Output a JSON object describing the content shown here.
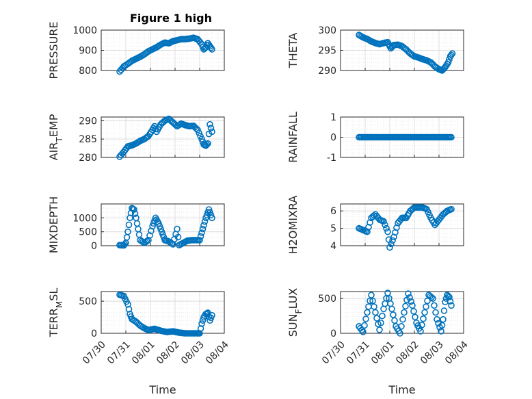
{
  "figure": {
    "title": "Figure 1 high"
  },
  "colors": {
    "marker": "#0072BD",
    "axis": "#262626",
    "grid_major": "#dcdcdc",
    "grid_minor": "#ececec"
  },
  "chart_data": [
    {
      "type": "scatter",
      "ylabel": "PRESSURE",
      "ylim": [
        800,
        1000
      ],
      "yticks": [
        800,
        900,
        1000
      ],
      "xlim": [
        "07/30",
        "08/04"
      ],
      "xticks": [],
      "xlabel": "",
      "points": [
        [
          "07/30 18:00",
          795
        ],
        [
          "07/30 22:00",
          820
        ],
        [
          "07/31 02:00",
          833
        ],
        [
          "07/31 06:00",
          848
        ],
        [
          "07/31 10:00",
          858
        ],
        [
          "07/31 14:00",
          868
        ],
        [
          "07/31 18:00",
          880
        ],
        [
          "07/31 22:00",
          895
        ],
        [
          "08/01 02:00",
          905
        ],
        [
          "08/01 06:00",
          915
        ],
        [
          "08/01 10:00",
          928
        ],
        [
          "08/01 14:00",
          938
        ],
        [
          "08/01 18:00",
          935
        ],
        [
          "08/01 22:00",
          945
        ],
        [
          "08/02 02:00",
          950
        ],
        [
          "08/02 06:00",
          955
        ],
        [
          "08/02 10:00",
          955
        ],
        [
          "08/02 14:00",
          958
        ],
        [
          "08/02 18:00",
          962
        ],
        [
          "08/02 22:00",
          955
        ],
        [
          "08/03 02:00",
          930
        ],
        [
          "08/03 04:00",
          905
        ],
        [
          "08/03 06:00",
          915
        ],
        [
          "08/03 08:00",
          935
        ],
        [
          "08/03 10:00",
          920
        ],
        [
          "08/03 12:00",
          905
        ]
      ]
    },
    {
      "type": "scatter",
      "ylabel": "THETA",
      "ylim": [
        290,
        300
      ],
      "yticks": [
        290,
        295,
        300
      ],
      "xlim": [
        "07/30",
        "08/04"
      ],
      "xticks": [],
      "xlabel": "",
      "points": [
        [
          "07/30 18:00",
          298.8
        ],
        [
          "07/30 22:00",
          298.2
        ],
        [
          "07/31 02:00",
          297.8
        ],
        [
          "07/31 06:00",
          297.2
        ],
        [
          "07/31 10:00",
          296.8
        ],
        [
          "07/31 14:00",
          296.5
        ],
        [
          "07/31 18:00",
          296.8
        ],
        [
          "07/31 22:00",
          297.0
        ],
        [
          "08/01 01:00",
          295.5
        ],
        [
          "08/01 04:00",
          296.3
        ],
        [
          "08/01 08:00",
          296.4
        ],
        [
          "08/01 12:00",
          296.0
        ],
        [
          "08/01 16:00",
          295.2
        ],
        [
          "08/01 20:00",
          294.2
        ],
        [
          "08/02 00:00",
          293.5
        ],
        [
          "08/02 04:00",
          293.2
        ],
        [
          "08/02 08:00",
          292.8
        ],
        [
          "08/02 12:00",
          292.5
        ],
        [
          "08/02 16:00",
          292.0
        ],
        [
          "08/02 20:00",
          291.0
        ],
        [
          "08/03 00:00",
          290.3
        ],
        [
          "08/03 03:00",
          290.0
        ],
        [
          "08/03 06:00",
          290.8
        ],
        [
          "08/03 09:00",
          292.0
        ],
        [
          "08/03 11:00",
          293.5
        ],
        [
          "08/03 13:00",
          294.2
        ]
      ]
    },
    {
      "type": "scatter",
      "ylabel": "AIR_TEMP",
      "ylim": [
        280,
        291
      ],
      "yticks": [
        280,
        285,
        290
      ],
      "xlim": [
        "07/30",
        "08/04"
      ],
      "xticks": [],
      "xlabel": "",
      "points": [
        [
          "07/30 18:00",
          280.2
        ],
        [
          "07/30 22:00",
          281.5
        ],
        [
          "07/31 02:00",
          283.0
        ],
        [
          "07/31 06:00",
          283.3
        ],
        [
          "07/31 10:00",
          283.8
        ],
        [
          "07/31 14:00",
          284.5
        ],
        [
          "07/31 18:00",
          285.0
        ],
        [
          "07/31 22:00",
          285.8
        ],
        [
          "08/01 02:00",
          287.5
        ],
        [
          "08/01 04:00",
          288.5
        ],
        [
          "08/01 06:00",
          287.0
        ],
        [
          "08/01 10:00",
          289.0
        ],
        [
          "08/01 14:00",
          290.0
        ],
        [
          "08/01 18:00",
          290.5
        ],
        [
          "08/01 22:00",
          289.5
        ],
        [
          "08/02 02:00",
          288.5
        ],
        [
          "08/02 06:00",
          289.2
        ],
        [
          "08/02 10:00",
          288.8
        ],
        [
          "08/02 14:00",
          288.5
        ],
        [
          "08/02 18:00",
          288.6
        ],
        [
          "08/02 22:00",
          287.5
        ],
        [
          "08/03 02:00",
          285.0
        ],
        [
          "08/03 04:00",
          283.5
        ],
        [
          "08/03 06:00",
          283.2
        ],
        [
          "08/03 08:00",
          283.8
        ],
        [
          "08/03 10:00",
          289.0
        ],
        [
          "08/03 12:00",
          287.0
        ]
      ]
    },
    {
      "type": "scatter",
      "ylabel": "RAINFALL",
      "ylim": [
        -1,
        1
      ],
      "yticks": [
        -1,
        0,
        1
      ],
      "xlim": [
        "07/30",
        "08/04"
      ],
      "xticks": [],
      "xlabel": "",
      "points": [
        [
          "07/30 18:00",
          0
        ],
        [
          "07/31 00:00",
          0
        ],
        [
          "07/31 06:00",
          0
        ],
        [
          "07/31 12:00",
          0
        ],
        [
          "07/31 18:00",
          0
        ],
        [
          "08/01 00:00",
          0
        ],
        [
          "08/01 06:00",
          0
        ],
        [
          "08/01 12:00",
          0
        ],
        [
          "08/01 18:00",
          0
        ],
        [
          "08/02 00:00",
          0
        ],
        [
          "08/02 06:00",
          0
        ],
        [
          "08/02 12:00",
          0
        ],
        [
          "08/02 18:00",
          0
        ],
        [
          "08/03 00:00",
          0
        ],
        [
          "08/03 06:00",
          0
        ],
        [
          "08/03 12:00",
          0
        ]
      ]
    },
    {
      "type": "scatter",
      "ylabel": "MIXDEPTH",
      "ylim": [
        0,
        1500
      ],
      "yticks": [
        0,
        500,
        1000
      ],
      "xlim": [
        "07/30",
        "08/04"
      ],
      "xticks": [],
      "xlabel": "",
      "points": [
        [
          "07/30 18:00",
          20
        ],
        [
          "07/30 22:00",
          10
        ],
        [
          "07/31 00:00",
          100
        ],
        [
          "07/31 02:00",
          500
        ],
        [
          "07/31 04:00",
          1000
        ],
        [
          "07/31 06:00",
          1350
        ],
        [
          "07/31 08:00",
          1300
        ],
        [
          "07/31 10:00",
          1000
        ],
        [
          "07/31 12:00",
          600
        ],
        [
          "07/31 14:00",
          200
        ],
        [
          "07/31 18:00",
          100
        ],
        [
          "07/31 22:00",
          200
        ],
        [
          "08/01 02:00",
          700
        ],
        [
          "08/01 05:00",
          1000
        ],
        [
          "08/01 08:00",
          800
        ],
        [
          "08/01 11:00",
          500
        ],
        [
          "08/01 14:00",
          200
        ],
        [
          "08/01 18:00",
          150
        ],
        [
          "08/01 22:00",
          50
        ],
        [
          "08/02 02:00",
          600
        ],
        [
          "08/02 04:00",
          20
        ],
        [
          "08/02 08:00",
          100
        ],
        [
          "08/02 12:00",
          180
        ],
        [
          "08/02 16:00",
          200
        ],
        [
          "08/02 20:00",
          200
        ],
        [
          "08/03 00:00",
          200
        ],
        [
          "08/03 03:00",
          600
        ],
        [
          "08/03 06:00",
          1000
        ],
        [
          "08/03 09:00",
          1300
        ],
        [
          "08/03 12:00",
          1000
        ]
      ]
    },
    {
      "type": "scatter",
      "ylabel": "H2OMIXRA",
      "ylim": [
        4,
        6.4
      ],
      "yticks": [
        4,
        5,
        6
      ],
      "xlim": [
        "07/30",
        "08/04"
      ],
      "xticks": [],
      "xlabel": "",
      "points": [
        [
          "07/30 18:00",
          5.0
        ],
        [
          "07/30 22:00",
          4.9
        ],
        [
          "07/31 02:00",
          4.8
        ],
        [
          "07/31 06:00",
          5.6
        ],
        [
          "07/31 10:00",
          5.8
        ],
        [
          "07/31 14:00",
          5.5
        ],
        [
          "07/31 18:00",
          5.4
        ],
        [
          "07/31 22:00",
          4.8
        ],
        [
          "08/01 00:00",
          3.9
        ],
        [
          "08/01 04:00",
          4.5
        ],
        [
          "08/01 08:00",
          5.3
        ],
        [
          "08/01 12:00",
          5.6
        ],
        [
          "08/01 16:00",
          5.6
        ],
        [
          "08/01 20:00",
          6.0
        ],
        [
          "08/02 00:00",
          6.2
        ],
        [
          "08/02 04:00",
          6.2
        ],
        [
          "08/02 08:00",
          6.2
        ],
        [
          "08/02 12:00",
          6.1
        ],
        [
          "08/02 16:00",
          5.6
        ],
        [
          "08/02 20:00",
          5.2
        ],
        [
          "08/03 00:00",
          5.5
        ],
        [
          "08/03 04:00",
          5.8
        ],
        [
          "08/03 08:00",
          6.0
        ],
        [
          "08/03 12:00",
          6.1
        ]
      ]
    },
    {
      "type": "scatter",
      "ylabel": "TERR_MSL",
      "ylim": [
        0,
        650
      ],
      "yticks": [
        0,
        500
      ],
      "xlim": [
        "07/30",
        "08/04"
      ],
      "xticks": [
        "07/30",
        "07/31",
        "08/01",
        "08/02",
        "08/03",
        "08/04"
      ],
      "xlabel": "Time",
      "points": [
        [
          "07/30 18:00",
          600
        ],
        [
          "07/30 22:00",
          580
        ],
        [
          "07/31 02:00",
          450
        ],
        [
          "07/31 04:00",
          300
        ],
        [
          "07/31 06:00",
          220
        ],
        [
          "07/31 10:00",
          180
        ],
        [
          "07/31 14:00",
          120
        ],
        [
          "07/31 18:00",
          80
        ],
        [
          "07/31 22:00",
          50
        ],
        [
          "08/01 04:00",
          70
        ],
        [
          "08/01 10:00",
          40
        ],
        [
          "08/01 16:00",
          20
        ],
        [
          "08/01 22:00",
          30
        ],
        [
          "08/02 04:00",
          10
        ],
        [
          "08/02 10:00",
          0
        ],
        [
          "08/02 16:00",
          0
        ],
        [
          "08/02 22:00",
          0
        ],
        [
          "08/03 00:00",
          0
        ],
        [
          "08/03 02:00",
          150
        ],
        [
          "08/03 04:00",
          250
        ],
        [
          "08/03 06:00",
          300
        ],
        [
          "08/03 08:00",
          320
        ],
        [
          "08/03 10:00",
          200
        ],
        [
          "08/03 12:00",
          280
        ]
      ]
    },
    {
      "type": "scatter",
      "ylabel": "SUN_FLUX",
      "ylim": [
        0,
        600
      ],
      "yticks": [
        0,
        500
      ],
      "xlim": [
        "07/30",
        "08/04"
      ],
      "xticks": [
        "07/30",
        "07/31",
        "08/01",
        "08/02",
        "08/03",
        "08/04"
      ],
      "xlabel": "Time",
      "points": [
        [
          "07/30 18:00",
          100
        ],
        [
          "07/30 22:00",
          20
        ],
        [
          "07/31 02:00",
          300
        ],
        [
          "07/31 06:00",
          550
        ],
        [
          "07/31 10:00",
          300
        ],
        [
          "07/31 14:00",
          50
        ],
        [
          "07/31 18:00",
          350
        ],
        [
          "07/31 22:00",
          580
        ],
        [
          "08/01 02:00",
          350
        ],
        [
          "08/01 06:00",
          100
        ],
        [
          "08/01 10:00",
          0
        ],
        [
          "08/01 14:00",
          300
        ],
        [
          "08/01 18:00",
          570
        ],
        [
          "08/01 22:00",
          400
        ],
        [
          "08/02 02:00",
          150
        ],
        [
          "08/02 06:00",
          30
        ],
        [
          "08/02 10:00",
          300
        ],
        [
          "08/02 14:00",
          550
        ],
        [
          "08/02 18:00",
          500
        ],
        [
          "08/02 22:00",
          200
        ],
        [
          "08/03 02:00",
          30
        ],
        [
          "08/03 04:00",
          200
        ],
        [
          "08/03 06:00",
          450
        ],
        [
          "08/03 08:00",
          550
        ],
        [
          "08/03 10:00",
          520
        ],
        [
          "08/03 12:00",
          400
        ]
      ]
    }
  ]
}
